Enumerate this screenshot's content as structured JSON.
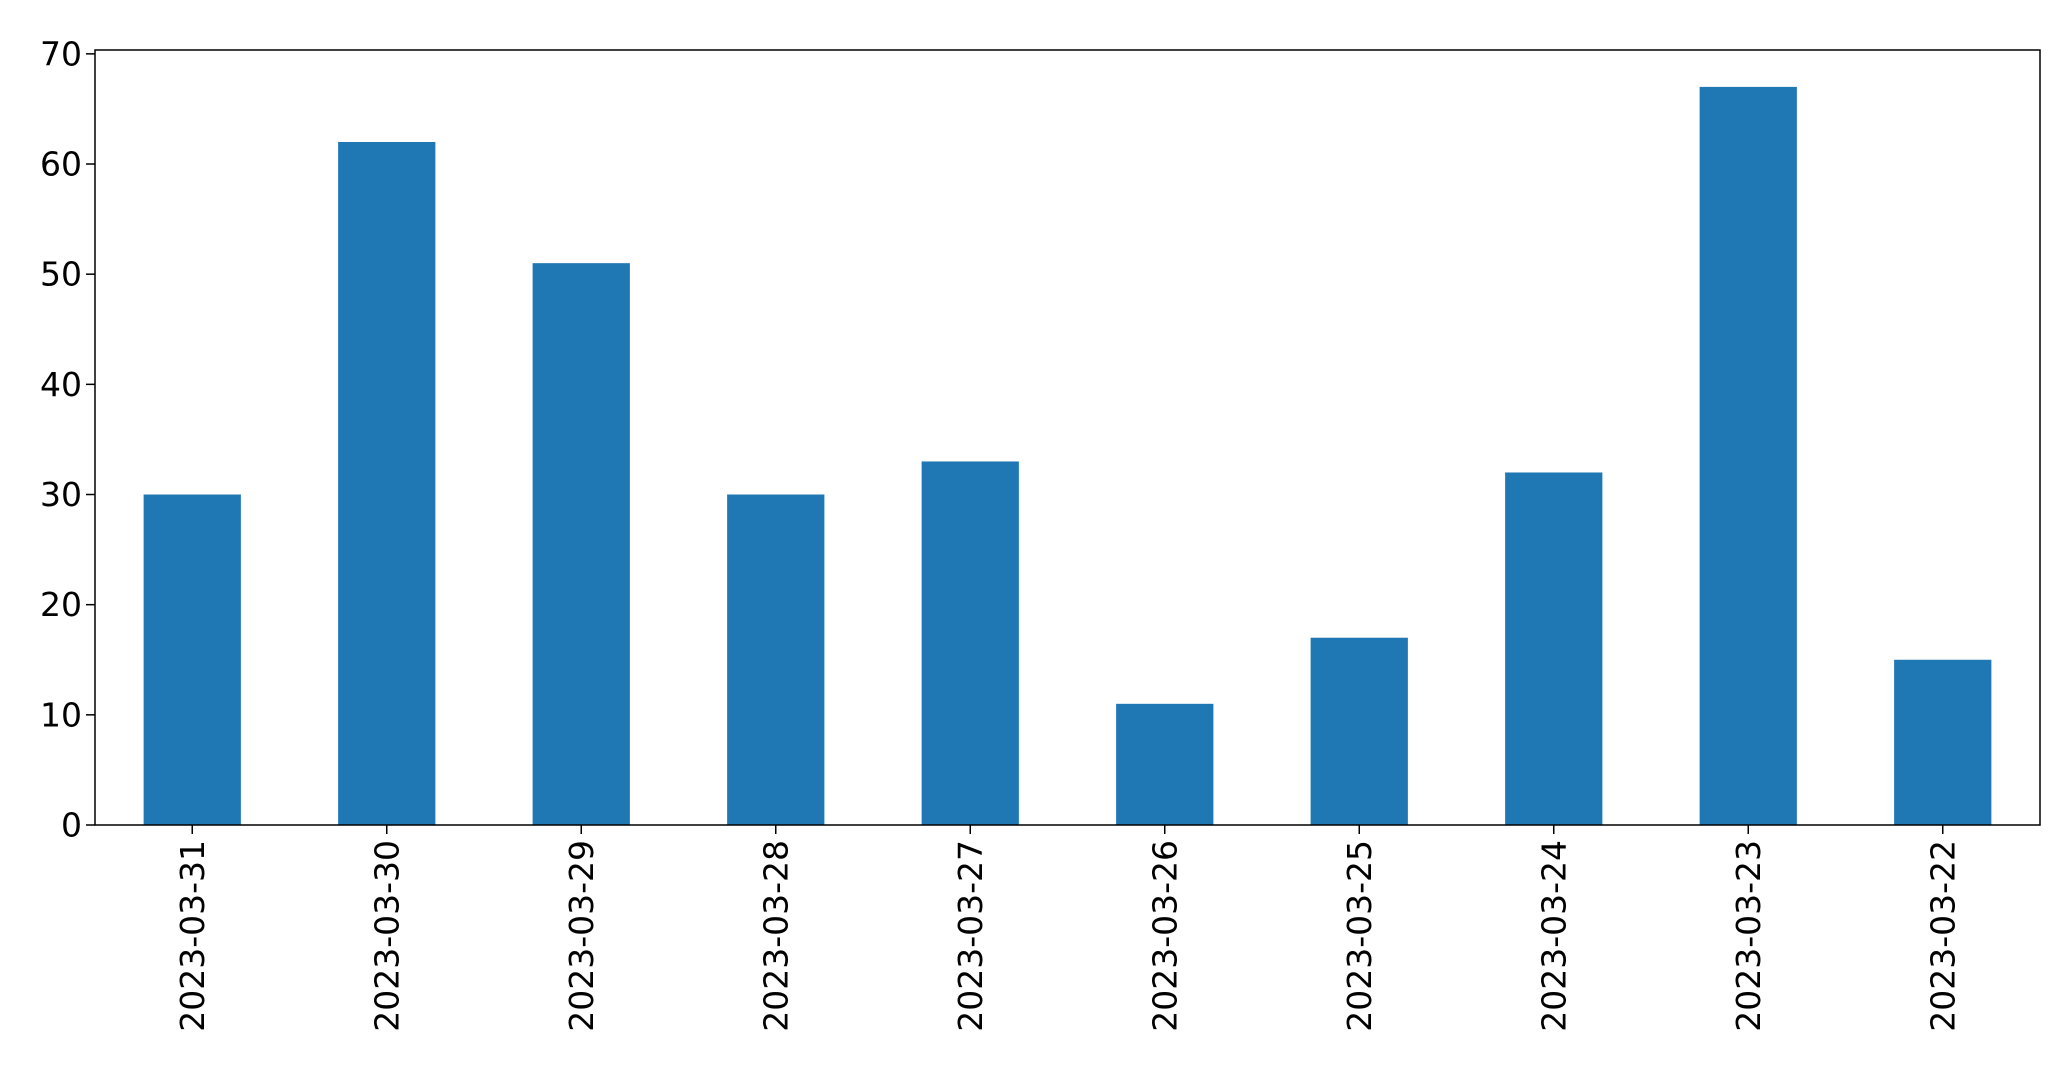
{
  "chart_data": {
    "type": "bar",
    "categories": [
      "2023-03-31",
      "2023-03-30",
      "2023-03-29",
      "2023-03-28",
      "2023-03-27",
      "2023-03-26",
      "2023-03-25",
      "2023-03-24",
      "2023-03-23",
      "2023-03-22"
    ],
    "values": [
      30,
      62,
      51,
      30,
      33,
      11,
      17,
      32,
      67,
      15
    ],
    "title": "",
    "xlabel": "",
    "ylabel": "",
    "ylim": [
      0,
      70.35
    ],
    "yticks": [
      0,
      10,
      20,
      30,
      40,
      50,
      60,
      70
    ],
    "grid": false,
    "bar_color": "#1f77b4"
  }
}
